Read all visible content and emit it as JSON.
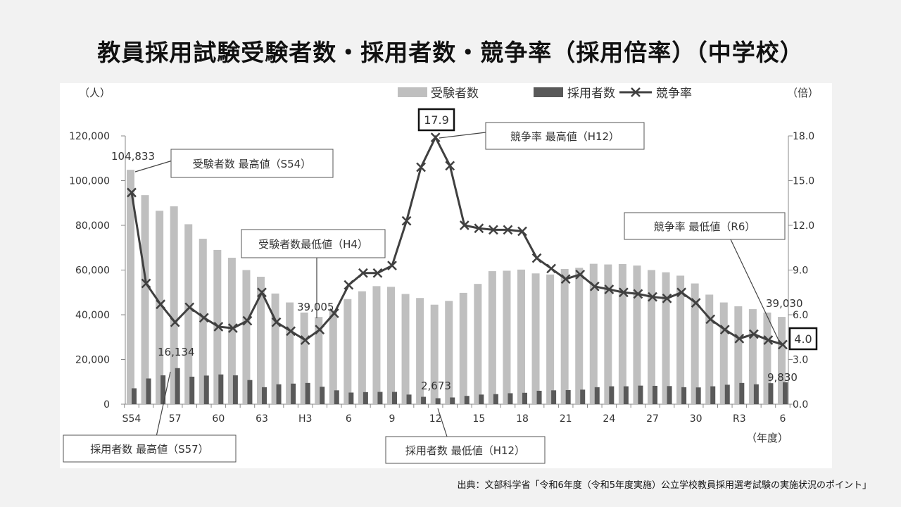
{
  "title": "教員採用試験受験者数・採用者数・競争率（採用倍率）（中学校）",
  "source": "出典：文部科学省「令和6年度（令和5年度実施）公立学校教員採用選考試験の実施状況のポイント」",
  "chart_data": {
    "type": "bar+line",
    "title": "教員採用試験受験者数・採用者数・競争率（採用倍率）（中学校）",
    "left_axis_unit": "（人）",
    "right_axis_unit": "（倍）",
    "x_axis_unit": "（年度）",
    "left_ylim": [
      0,
      120000
    ],
    "right_ylim": [
      0,
      18
    ],
    "left_ticks": [
      "0",
      "20,000",
      "40,000",
      "60,000",
      "80,000",
      "100,000",
      "120,000"
    ],
    "right_ticks": [
      "0.0",
      "3.0",
      "6.0",
      "9.0",
      "12.0",
      "15.0",
      "18.0"
    ],
    "x_tick_labels": [
      "S54",
      "57",
      "60",
      "63",
      "H3",
      "6",
      "9",
      "12",
      "15",
      "18",
      "21",
      "24",
      "27",
      "30",
      "R3",
      "6"
    ],
    "categories": [
      "S54",
      "S55",
      "S56",
      "S57",
      "S58",
      "S59",
      "S60",
      "S61",
      "S62",
      "S63",
      "H1",
      "H2",
      "H3",
      "H4",
      "H5",
      "H6",
      "H7",
      "H8",
      "H9",
      "H10",
      "H11",
      "H12",
      "H13",
      "H14",
      "H15",
      "H16",
      "H17",
      "H18",
      "H19",
      "H20",
      "H21",
      "H22",
      "H23",
      "H24",
      "H25",
      "H26",
      "H27",
      "H28",
      "H29",
      "H30",
      "R1",
      "R2",
      "R3",
      "R4",
      "R5",
      "R6"
    ],
    "legend": [
      "受験者数",
      "採用者数",
      "競争率"
    ],
    "legend_placement": "top",
    "colors": {
      "applicants": "#bfbfbf",
      "hired": "#595959",
      "ratio": "#404040"
    },
    "series": [
      {
        "name": "受験者数",
        "axis": "left",
        "type": "bar",
        "values": [
          104833,
          93500,
          86500,
          88500,
          80500,
          74000,
          69000,
          65500,
          60000,
          57000,
          49500,
          45500,
          41000,
          39005,
          42000,
          47000,
          50500,
          52800,
          52500,
          49300,
          47500,
          44500,
          46200,
          49800,
          53800,
          59500,
          59700,
          60200,
          58500,
          58000,
          60500,
          61000,
          62800,
          62500,
          62700,
          62000,
          60000,
          59000,
          57500,
          54000,
          49000,
          45500,
          43800,
          42500,
          41000,
          39030
        ]
      },
      {
        "name": "採用者数",
        "axis": "left",
        "type": "bar",
        "values": [
          7100,
          11500,
          12900,
          16134,
          12300,
          12800,
          13300,
          12900,
          10800,
          7600,
          8900,
          9200,
          9500,
          7800,
          6200,
          5200,
          5400,
          5500,
          5500,
          4300,
          3300,
          2673,
          3000,
          3700,
          4300,
          4500,
          4900,
          5100,
          6000,
          6200,
          6300,
          6500,
          7600,
          8000,
          8000,
          8300,
          8200,
          8100,
          7600,
          7500,
          8000,
          8700,
          9500,
          8900,
          9400,
          9830
        ]
      },
      {
        "name": "競争率",
        "axis": "right",
        "type": "line",
        "values": [
          14.2,
          8.1,
          6.7,
          5.5,
          6.5,
          5.8,
          5.2,
          5.1,
          5.6,
          7.5,
          5.5,
          4.9,
          4.3,
          5.0,
          6.1,
          8.0,
          8.8,
          8.8,
          9.3,
          12.3,
          15.9,
          17.9,
          16.0,
          12.0,
          11.8,
          11.7,
          11.7,
          11.6,
          9.8,
          9.1,
          8.4,
          8.7,
          7.9,
          7.7,
          7.5,
          7.4,
          7.2,
          7.1,
          7.5,
          6.8,
          5.7,
          5.0,
          4.4,
          4.7,
          4.3,
          4.0
        ]
      }
    ],
    "annotations": {
      "applicants_max_value": "104,833",
      "applicants_max_label": "受験者数 最高値（S54）",
      "hired_max_value": "16,134",
      "hired_max_label": "採用者数 最高値（S57）",
      "applicants_min_value": "39,005",
      "applicants_min_label": "受験者数最低値（H4）",
      "ratio_max_value": "17.9",
      "ratio_max_label": "競争率 最高値（H12）",
      "hired_min_value": "2,673",
      "hired_min_label": "採用者数 最低値（H12）",
      "ratio_min_value": "4.0",
      "ratio_min_label": "競争率 最低値（R6）",
      "applicants_last_value": "39,030",
      "hired_last_value": "9,830"
    }
  }
}
